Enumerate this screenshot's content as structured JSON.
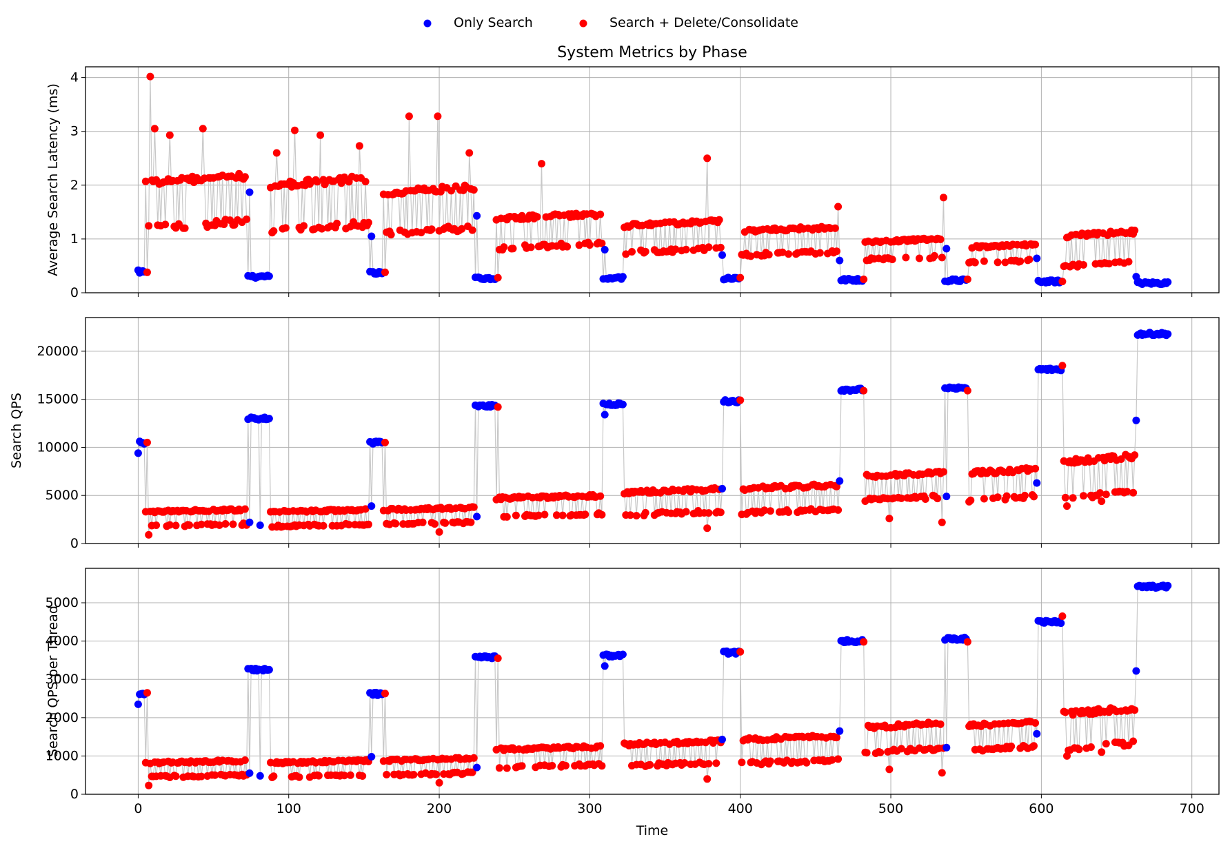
{
  "chart_data": {
    "type": "scatter",
    "title": "System Metrics by Phase",
    "xlabel": "Time",
    "xlim": [
      -35,
      718
    ],
    "xticks": [
      0,
      100,
      200,
      300,
      400,
      500,
      600,
      700
    ],
    "grid": true,
    "shared_x": true,
    "connecting_line_color": "#c8c8c8",
    "legend": {
      "position": "top-center",
      "entries": [
        {
          "label": "Only Search",
          "color": "#0000ff"
        },
        {
          "label": "Search + Delete/Consolidate",
          "color": "#ff0000"
        }
      ]
    },
    "phases": [
      {
        "mode": "search",
        "start": 0,
        "end": 4
      },
      {
        "mode": "mixed",
        "start": 5,
        "end": 72
      },
      {
        "mode": "search",
        "start": 73,
        "end": 87
      },
      {
        "mode": "mixed",
        "start": 88,
        "end": 153
      },
      {
        "mode": "search",
        "start": 154,
        "end": 162
      },
      {
        "mode": "mixed",
        "start": 163,
        "end": 223
      },
      {
        "mode": "search",
        "start": 224,
        "end": 237
      },
      {
        "mode": "mixed",
        "start": 238,
        "end": 308
      },
      {
        "mode": "search",
        "start": 309,
        "end": 322
      },
      {
        "mode": "mixed",
        "start": 323,
        "end": 387
      },
      {
        "mode": "search",
        "start": 388,
        "end": 399
      },
      {
        "mode": "mixed",
        "start": 400,
        "end": 465
      },
      {
        "mode": "search",
        "start": 466,
        "end": 481
      },
      {
        "mode": "mixed",
        "start": 482,
        "end": 535
      },
      {
        "mode": "search",
        "start": 536,
        "end": 550
      },
      {
        "mode": "mixed",
        "start": 551,
        "end": 596
      },
      {
        "mode": "search",
        "start": 597,
        "end": 613
      },
      {
        "mode": "mixed",
        "start": 614,
        "end": 662
      },
      {
        "mode": "search",
        "start": 663,
        "end": 684
      }
    ],
    "panels": [
      {
        "ylabel": "Average Search Latency (ms)",
        "ylim": [
          0,
          4.2
        ],
        "yticks": [
          0,
          1,
          2,
          3,
          4
        ],
        "search_levels": [
          0.38,
          0.3,
          0.37,
          0.27,
          0.28,
          0.26,
          0.24,
          0.23,
          0.21,
          0.18
        ],
        "mixed_bands": [
          [
            1.2,
            2.05
          ],
          [
            1.15,
            2.0
          ],
          [
            1.1,
            1.85
          ],
          [
            0.83,
            1.38
          ],
          [
            0.75,
            1.25
          ],
          [
            0.7,
            1.15
          ],
          [
            0.62,
            0.95
          ],
          [
            0.56,
            0.85
          ],
          [
            0.5,
            1.05
          ],
          [
            0.42,
            0.72
          ]
        ],
        "spikes": [
          [
            8,
            4.02
          ],
          [
            11,
            3.05
          ],
          [
            21,
            2.93
          ],
          [
            43,
            3.05
          ],
          [
            92,
            2.6
          ],
          [
            104,
            3.02
          ],
          [
            121,
            2.93
          ],
          [
            147,
            2.73
          ],
          [
            180,
            3.28
          ],
          [
            199,
            3.28
          ],
          [
            220,
            2.6
          ],
          [
            268,
            2.4
          ],
          [
            378,
            2.5
          ],
          [
            465,
            1.6
          ],
          [
            535,
            1.77
          ]
        ],
        "series": [
          {
            "name": "Only Search",
            "anchor_points": [
              [
                0,
                0.42
              ],
              [
                74,
                1.87
              ],
              [
                155,
                1.05
              ],
              [
                225,
                1.43
              ],
              [
                310,
                0.8
              ],
              [
                388,
                0.7
              ],
              [
                466,
                0.6
              ],
              [
                537,
                0.82
              ],
              [
                597,
                0.64
              ],
              [
                663,
                0.3
              ]
            ]
          },
          {
            "name": "Search + Delete/Consolidate",
            "anchor_points": [
              [
                6,
                0.38
              ],
              [
                164,
                0.38
              ],
              [
                239,
                0.28
              ],
              [
                400,
                0.28
              ],
              [
                482,
                0.25
              ],
              [
                551,
                0.25
              ],
              [
                614,
                0.21
              ]
            ]
          }
        ]
      },
      {
        "ylabel": "Search QPS",
        "ylim": [
          0,
          23500
        ],
        "yticks": [
          0,
          5000,
          10000,
          15000,
          20000
        ],
        "search_levels": [
          10500,
          13000,
          10500,
          14300,
          14500,
          14800,
          16000,
          16200,
          18100,
          21800
        ],
        "mixed_bands": [
          [
            1800,
            3300
          ],
          [
            1800,
            3300
          ],
          [
            2000,
            3500
          ],
          [
            2800,
            4700
          ],
          [
            3000,
            5300
          ],
          [
            3200,
            5700
          ],
          [
            4500,
            7000
          ],
          [
            4500,
            7300
          ],
          [
            4800,
            8500
          ],
          [
            5500,
            10500
          ]
        ],
        "spikes": [
          [
            7,
            900
          ],
          [
            81,
            1900
          ],
          [
            200,
            1200
          ],
          [
            378,
            1600
          ],
          [
            499,
            2600
          ],
          [
            534,
            2200
          ],
          [
            617,
            3900
          ],
          [
            640,
            4400
          ]
        ],
        "series": [
          {
            "name": "Only Search",
            "anchor_points": [
              [
                0,
                9400
              ],
              [
                74,
                2200
              ],
              [
                155,
                3900
              ],
              [
                225,
                2800
              ],
              [
                310,
                13400
              ],
              [
                388,
                5700
              ],
              [
                466,
                6500
              ],
              [
                537,
                4900
              ],
              [
                597,
                6300
              ],
              [
                663,
                12800
              ]
            ]
          },
          {
            "name": "Search + Delete/Consolidate",
            "anchor_points": [
              [
                6,
                10500
              ],
              [
                164,
                10500
              ],
              [
                239,
                14200
              ],
              [
                400,
                14900
              ],
              [
                482,
                15900
              ],
              [
                551,
                15900
              ],
              [
                614,
                18500
              ]
            ]
          }
        ]
      },
      {
        "ylabel": "Search QPS per Thread",
        "ylim": [
          0,
          5900
        ],
        "yticks": [
          0,
          1000,
          2000,
          3000,
          4000,
          5000
        ],
        "search_levels": [
          2600,
          3250,
          2620,
          3580,
          3620,
          3700,
          4000,
          4060,
          4500,
          5420
        ],
        "mixed_bands": [
          [
            450,
            820
          ],
          [
            450,
            820
          ],
          [
            500,
            880
          ],
          [
            700,
            1170
          ],
          [
            750,
            1300
          ],
          [
            800,
            1420
          ],
          [
            1100,
            1750
          ],
          [
            1150,
            1800
          ],
          [
            1200,
            2100
          ],
          [
            1350,
            2700
          ]
        ],
        "spikes": [
          [
            7,
            230
          ],
          [
            81,
            480
          ],
          [
            200,
            300
          ],
          [
            378,
            400
          ],
          [
            499,
            650
          ],
          [
            534,
            560
          ],
          [
            617,
            1000
          ],
          [
            640,
            1100
          ]
        ],
        "series": [
          {
            "name": "Only Search",
            "anchor_points": [
              [
                0,
                2350
              ],
              [
                74,
                550
              ],
              [
                155,
                980
              ],
              [
                225,
                700
              ],
              [
                310,
                3350
              ],
              [
                388,
                1430
              ],
              [
                466,
                1650
              ],
              [
                537,
                1220
              ],
              [
                597,
                1580
              ],
              [
                663,
                3220
              ]
            ]
          },
          {
            "name": "Search + Delete/Consolidate",
            "anchor_points": [
              [
                6,
                2650
              ],
              [
                164,
                2630
              ],
              [
                239,
                3550
              ],
              [
                400,
                3720
              ],
              [
                482,
                3980
              ],
              [
                551,
                3980
              ],
              [
                614,
                4650
              ]
            ]
          }
        ]
      }
    ]
  }
}
